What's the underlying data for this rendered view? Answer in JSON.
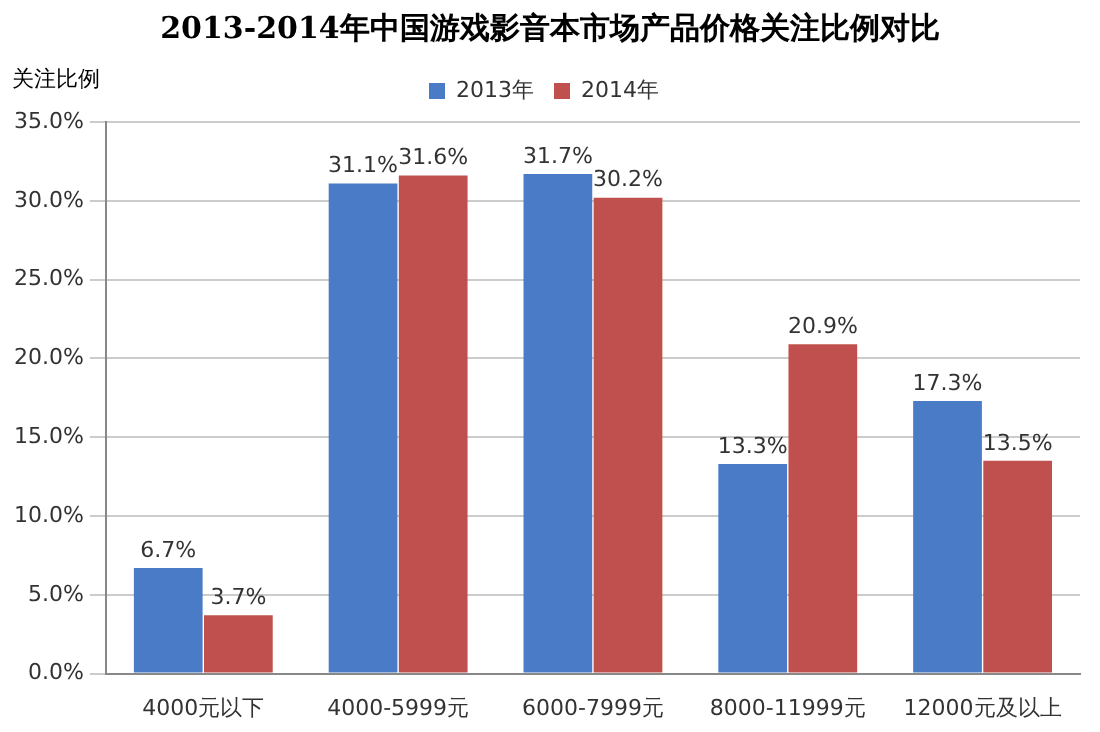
{
  "chart_data": {
    "type": "bar",
    "title": "2013-2014年中国游戏影音本市场产品价格关注比例对比",
    "ylabel": "关注比例",
    "categories": [
      "4000元以下",
      "4000-5999元",
      "6000-7999元",
      "8000-11999元",
      "12000元及以上"
    ],
    "series": [
      {
        "name": "2013年",
        "color": "#4a7bc6",
        "values": [
          6.7,
          31.1,
          31.7,
          13.3,
          17.3
        ],
        "value_labels": [
          "6.7%",
          "31.1%",
          "31.7%",
          "13.3%",
          "17.3%"
        ]
      },
      {
        "name": "2014年",
        "color": "#c0504d",
        "values": [
          3.7,
          31.6,
          30.2,
          20.9,
          13.5
        ],
        "value_labels": [
          "3.7%",
          "31.6%",
          "30.2%",
          "20.9%",
          "13.5%"
        ]
      }
    ],
    "ylim": [
      0,
      35
    ],
    "yticks": [
      {
        "value": 0,
        "label": "0.0%"
      },
      {
        "value": 5,
        "label": "5.0%"
      },
      {
        "value": 10,
        "label": "10.0%"
      },
      {
        "value": 15,
        "label": "15.0%"
      },
      {
        "value": 20,
        "label": "20.0%"
      },
      {
        "value": 25,
        "label": "25.0%"
      },
      {
        "value": 30,
        "label": "30.0%"
      },
      {
        "value": 35,
        "label": "35.0%"
      }
    ],
    "grid": "y",
    "legend": "top"
  }
}
